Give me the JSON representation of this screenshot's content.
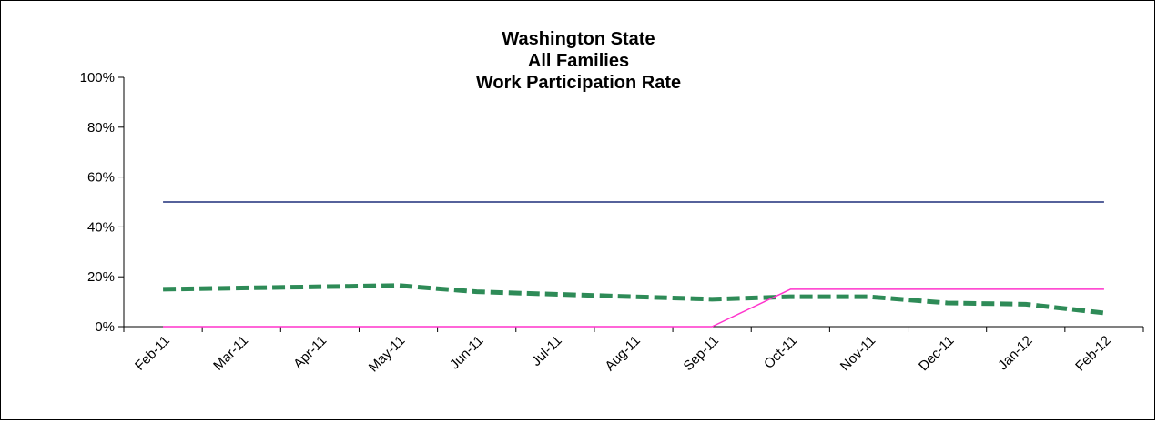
{
  "chart_data": {
    "type": "line",
    "title": [
      "Washington State",
      "All Families",
      "Work Participation Rate"
    ],
    "categories": [
      "Feb-11",
      "Mar-11",
      "Apr-11",
      "May-11",
      "Jun-11",
      "Jul-11",
      "Aug-11",
      "Sep-11",
      "Oct-11",
      "Nov-11",
      "Dec-11",
      "Jan-12",
      "Feb-12"
    ],
    "y_ticks": [
      "0%",
      "20%",
      "40%",
      "60%",
      "80%",
      "100%"
    ],
    "ylim": [
      0,
      100
    ],
    "grid": false,
    "legend": "none",
    "series": [
      {
        "color": "#1f2f7a",
        "style": "solid",
        "values": [
          50,
          50,
          50,
          50,
          50,
          50,
          50,
          50,
          50,
          50,
          50,
          50,
          50
        ]
      },
      {
        "color": "#2e8b57",
        "style": "dashed",
        "values": [
          15,
          15.5,
          16,
          16.5,
          14,
          13,
          12,
          11,
          12,
          12,
          9.5,
          9,
          5.5
        ]
      },
      {
        "color": "#ff33cc",
        "style": "solid",
        "values": [
          0,
          0,
          0,
          0,
          0,
          0,
          0,
          0,
          15,
          15,
          15,
          15,
          15
        ]
      }
    ]
  }
}
